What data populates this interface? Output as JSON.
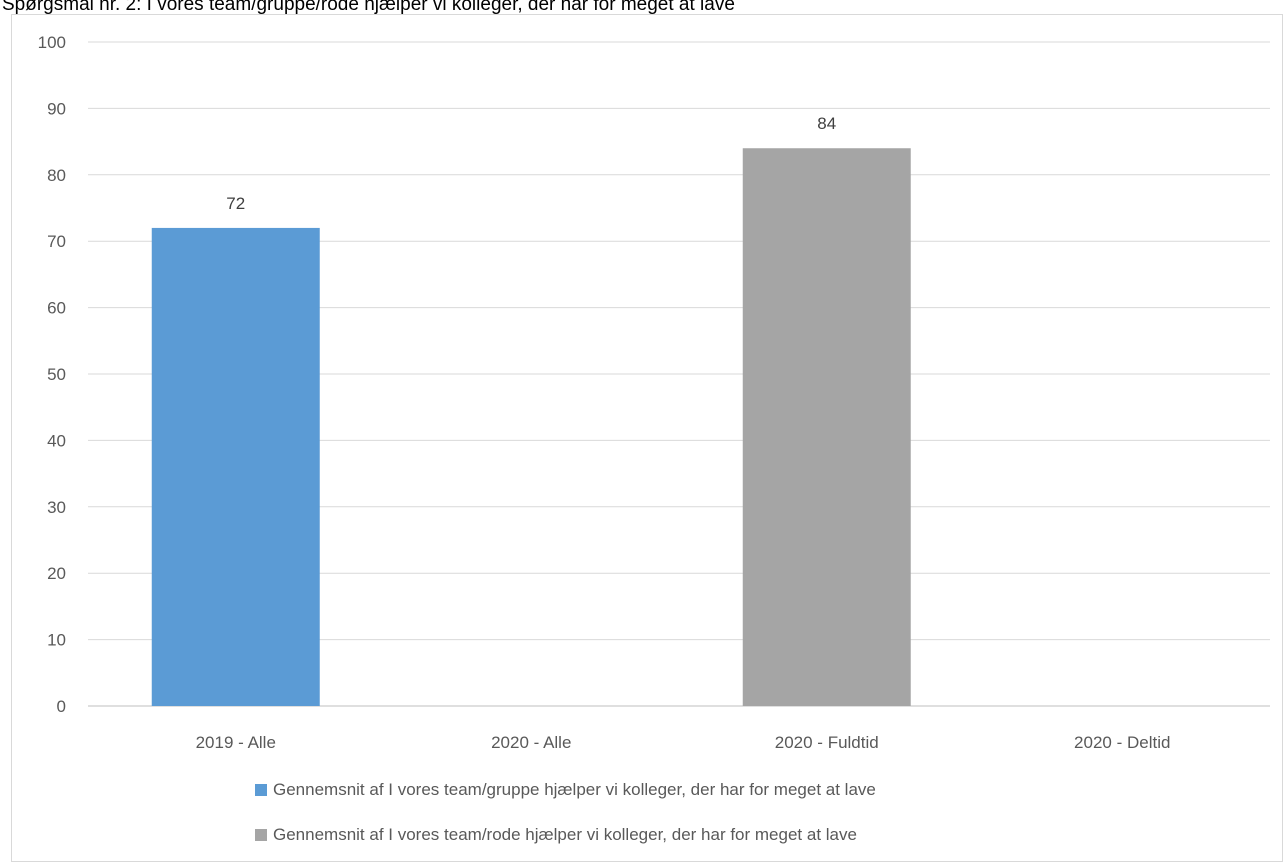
{
  "title": "Spørgsmål nr. 2: I vores team/gruppe/rode hjælper vi kolleger, der har for meget at lave",
  "chart_data": {
    "type": "bar",
    "categories": [
      "2019 - Alle",
      "2020 - Alle",
      "2020 - Fuldtid",
      "2020 - Deltid"
    ],
    "series": [
      {
        "name": "Gennemsnit af I vores team/gruppe hjælper vi kolleger, der har for meget at lave",
        "color": "#5b9bd5",
        "values": [
          72,
          null,
          null,
          null
        ]
      },
      {
        "name": "Gennemsnit af I vores team/rode hjælper vi kolleger, der har for meget at lave",
        "color": "#a5a5a5",
        "values": [
          null,
          null,
          84,
          null
        ]
      }
    ],
    "ylim": [
      0,
      100
    ],
    "yticks": [
      0,
      10,
      20,
      30,
      40,
      50,
      60,
      70,
      80,
      90,
      100
    ],
    "grid": true,
    "legend": "bottom"
  }
}
